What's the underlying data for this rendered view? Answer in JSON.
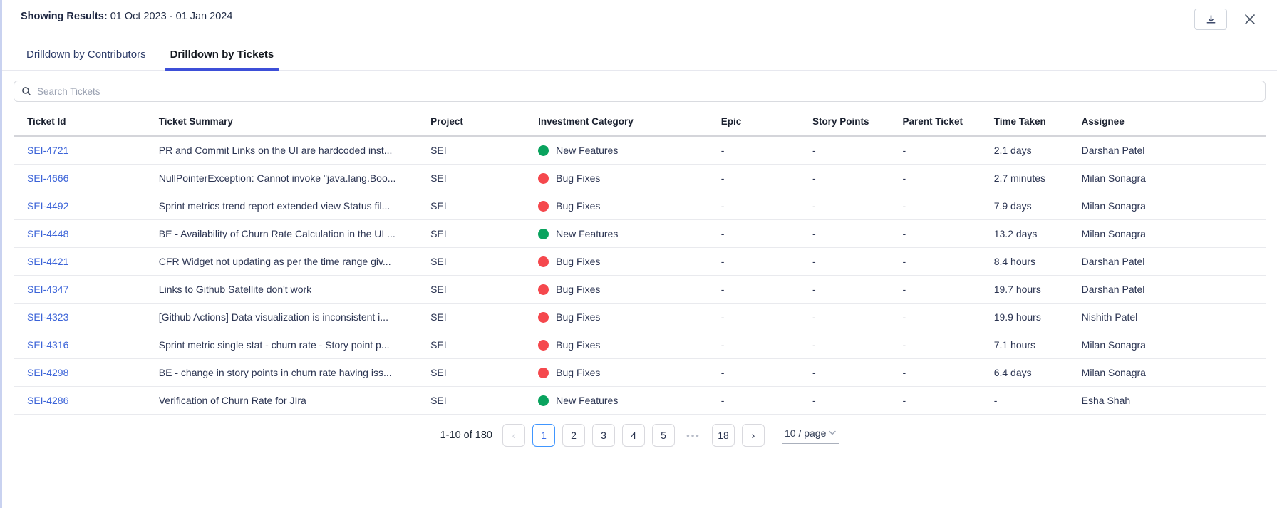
{
  "header": {
    "label": "Showing Results:",
    "date_range": "01 Oct 2023 - 01 Jan 2024"
  },
  "tabs": [
    {
      "label": "Drilldown by Contributors",
      "active": false
    },
    {
      "label": "Drilldown by Tickets",
      "active": true
    }
  ],
  "search": {
    "placeholder": "Search Tickets",
    "value": ""
  },
  "table": {
    "columns": [
      "Ticket Id",
      "Ticket Summary",
      "Project",
      "Investment Category",
      "Epic",
      "Story Points",
      "Parent Ticket",
      "Time Taken",
      "Assignee"
    ],
    "rows": [
      {
        "id": "SEI-4721",
        "summary": "PR and Commit Links on the UI are hardcoded inst...",
        "project": "SEI",
        "category": "New Features",
        "category_color": "green",
        "epic": "-",
        "story_points": "-",
        "parent_ticket": "-",
        "time_taken": "2.1 days",
        "assignee": "Darshan Patel"
      },
      {
        "id": "SEI-4666",
        "summary": "NullPointerException: Cannot invoke \"java.lang.Boo...",
        "project": "SEI",
        "category": "Bug Fixes",
        "category_color": "red",
        "epic": "-",
        "story_points": "-",
        "parent_ticket": "-",
        "time_taken": "2.7 minutes",
        "assignee": "Milan Sonagra"
      },
      {
        "id": "SEI-4492",
        "summary": "Sprint metrics trend report extended view Status fil...",
        "project": "SEI",
        "category": "Bug Fixes",
        "category_color": "red",
        "epic": "-",
        "story_points": "-",
        "parent_ticket": "-",
        "time_taken": "7.9 days",
        "assignee": "Milan Sonagra"
      },
      {
        "id": "SEI-4448",
        "summary": "BE - Availability of Churn Rate Calculation in the UI ...",
        "project": "SEI",
        "category": "New Features",
        "category_color": "green",
        "epic": "-",
        "story_points": "-",
        "parent_ticket": "-",
        "time_taken": "13.2 days",
        "assignee": "Milan Sonagra"
      },
      {
        "id": "SEI-4421",
        "summary": "CFR Widget not updating as per the time range giv...",
        "project": "SEI",
        "category": "Bug Fixes",
        "category_color": "red",
        "epic": "-",
        "story_points": "-",
        "parent_ticket": "-",
        "time_taken": "8.4 hours",
        "assignee": "Darshan Patel"
      },
      {
        "id": "SEI-4347",
        "summary": "Links to Github Satellite don't work",
        "project": "SEI",
        "category": "Bug Fixes",
        "category_color": "red",
        "epic": "-",
        "story_points": "-",
        "parent_ticket": "-",
        "time_taken": "19.7 hours",
        "assignee": "Darshan Patel"
      },
      {
        "id": "SEI-4323",
        "summary": "[Github Actions] Data visualization is inconsistent i...",
        "project": "SEI",
        "category": "Bug Fixes",
        "category_color": "red",
        "epic": "-",
        "story_points": "-",
        "parent_ticket": "-",
        "time_taken": "19.9 hours",
        "assignee": "Nishith Patel"
      },
      {
        "id": "SEI-4316",
        "summary": "Sprint metric single stat - churn rate - Story point p...",
        "project": "SEI",
        "category": "Bug Fixes",
        "category_color": "red",
        "epic": "-",
        "story_points": "-",
        "parent_ticket": "-",
        "time_taken": "7.1 hours",
        "assignee": "Milan Sonagra"
      },
      {
        "id": "SEI-4298",
        "summary": "BE - change in story points in churn rate having iss...",
        "project": "SEI",
        "category": "Bug Fixes",
        "category_color": "red",
        "epic": "-",
        "story_points": "-",
        "parent_ticket": "-",
        "time_taken": "6.4 days",
        "assignee": "Milan Sonagra"
      },
      {
        "id": "SEI-4286",
        "summary": "Verification of Churn Rate for JIra",
        "project": "SEI",
        "category": "New Features",
        "category_color": "green",
        "epic": "-",
        "story_points": "-",
        "parent_ticket": "-",
        "time_taken": "-",
        "assignee": "Esha Shah"
      }
    ]
  },
  "pagination": {
    "total_label": "1-10 of 180",
    "pages": [
      "1",
      "2",
      "3",
      "4",
      "5"
    ],
    "active_page": "1",
    "ellipsis": "•••",
    "last_page": "18",
    "page_size_label": "10 / page"
  },
  "colors": {
    "green": "#0aa35e",
    "red": "#f5484d",
    "link_blue": "#3b63d8",
    "tab_accent": "#3d4fd8",
    "active_page_border": "#4096ff"
  }
}
